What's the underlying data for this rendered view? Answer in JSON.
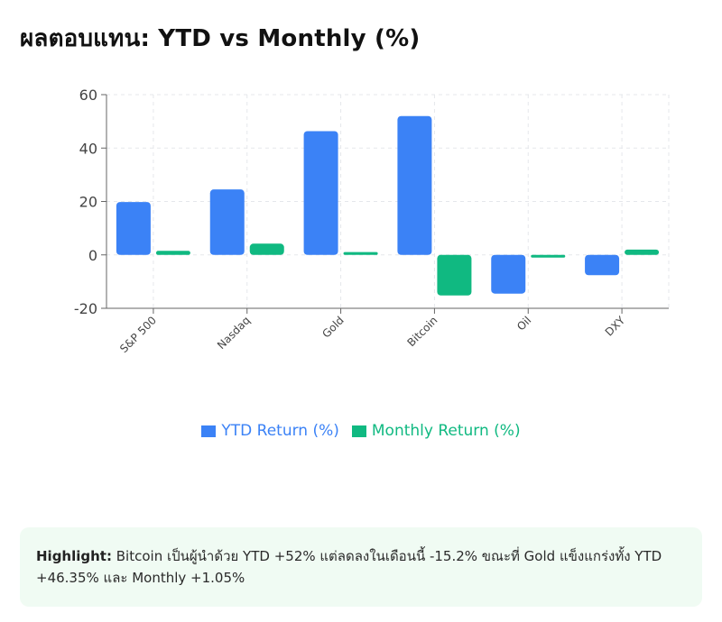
{
  "page": {
    "title": "ผลตอบแทน: YTD vs Monthly (%)"
  },
  "colors": {
    "ytd": "#3b82f6",
    "monthly": "#10b981",
    "grid": "#e5e7eb",
    "axis": "#666666"
  },
  "chart_data": {
    "type": "bar",
    "title": "ผลตอบแทน: YTD vs Monthly (%)",
    "xlabel": "",
    "ylabel": "",
    "categories": [
      "S&P 500",
      "Nasdaq",
      "Gold",
      "Bitcoin",
      "Oil",
      "DXY"
    ],
    "series": [
      {
        "name": "YTD Return (%)",
        "values": [
          19.8,
          24.5,
          46.35,
          52.0,
          -14.5,
          -7.6
        ]
      },
      {
        "name": "Monthly Return (%)",
        "values": [
          1.5,
          4.2,
          1.05,
          -15.2,
          -1.0,
          2.0
        ]
      }
    ],
    "ylim": [
      -20,
      60
    ],
    "yticks": [
      60,
      40,
      20,
      0,
      -20
    ],
    "grid": true,
    "legend_position": "bottom"
  },
  "legend": {
    "ytd_label": "YTD Return (%)",
    "monthly_label": "Monthly Return (%)"
  },
  "highlight": {
    "label": "Highlight:",
    "text": "Bitcoin เป็นผู้นำด้วย YTD +52% แต่ลดลงในเดือนนี้ -15.2% ขณะที่ Gold แข็งแกร่งทั้ง YTD +46.35% และ Monthly +1.05%"
  }
}
